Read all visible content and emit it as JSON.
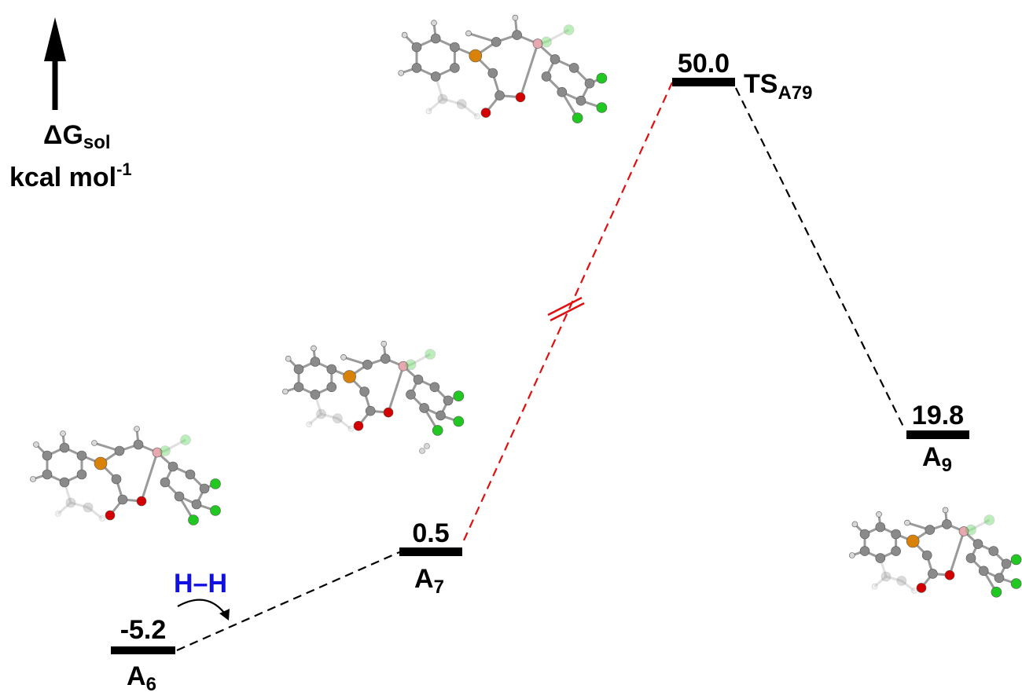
{
  "axis": {
    "symbol": "ΔG",
    "subscript": "sol",
    "unit_main": "kcal mol",
    "unit_sup": "-1"
  },
  "reagent": {
    "label": "H–H",
    "color": "#1010e0"
  },
  "states": [
    {
      "id": "A6",
      "energy": "-5.2",
      "name": "A",
      "sub": "6"
    },
    {
      "id": "A7",
      "energy": "0.5",
      "name": "A",
      "sub": "7"
    },
    {
      "id": "TSA79",
      "energy": "50.0",
      "name": "TS",
      "sub": "A79"
    },
    {
      "id": "A9",
      "energy": "19.8",
      "name": "A",
      "sub": "9"
    }
  ],
  "colors": {
    "connector": "#000000",
    "ts_connector": "#e01010",
    "atom_carbon": "#8a8a8a",
    "atom_hydrogen": "#d8d8d8",
    "atom_phosphorus": "#d9820a",
    "atom_oxygen": "#d40000",
    "atom_chlorine": "#22c822",
    "atom_boron": "#e8a8b0"
  }
}
